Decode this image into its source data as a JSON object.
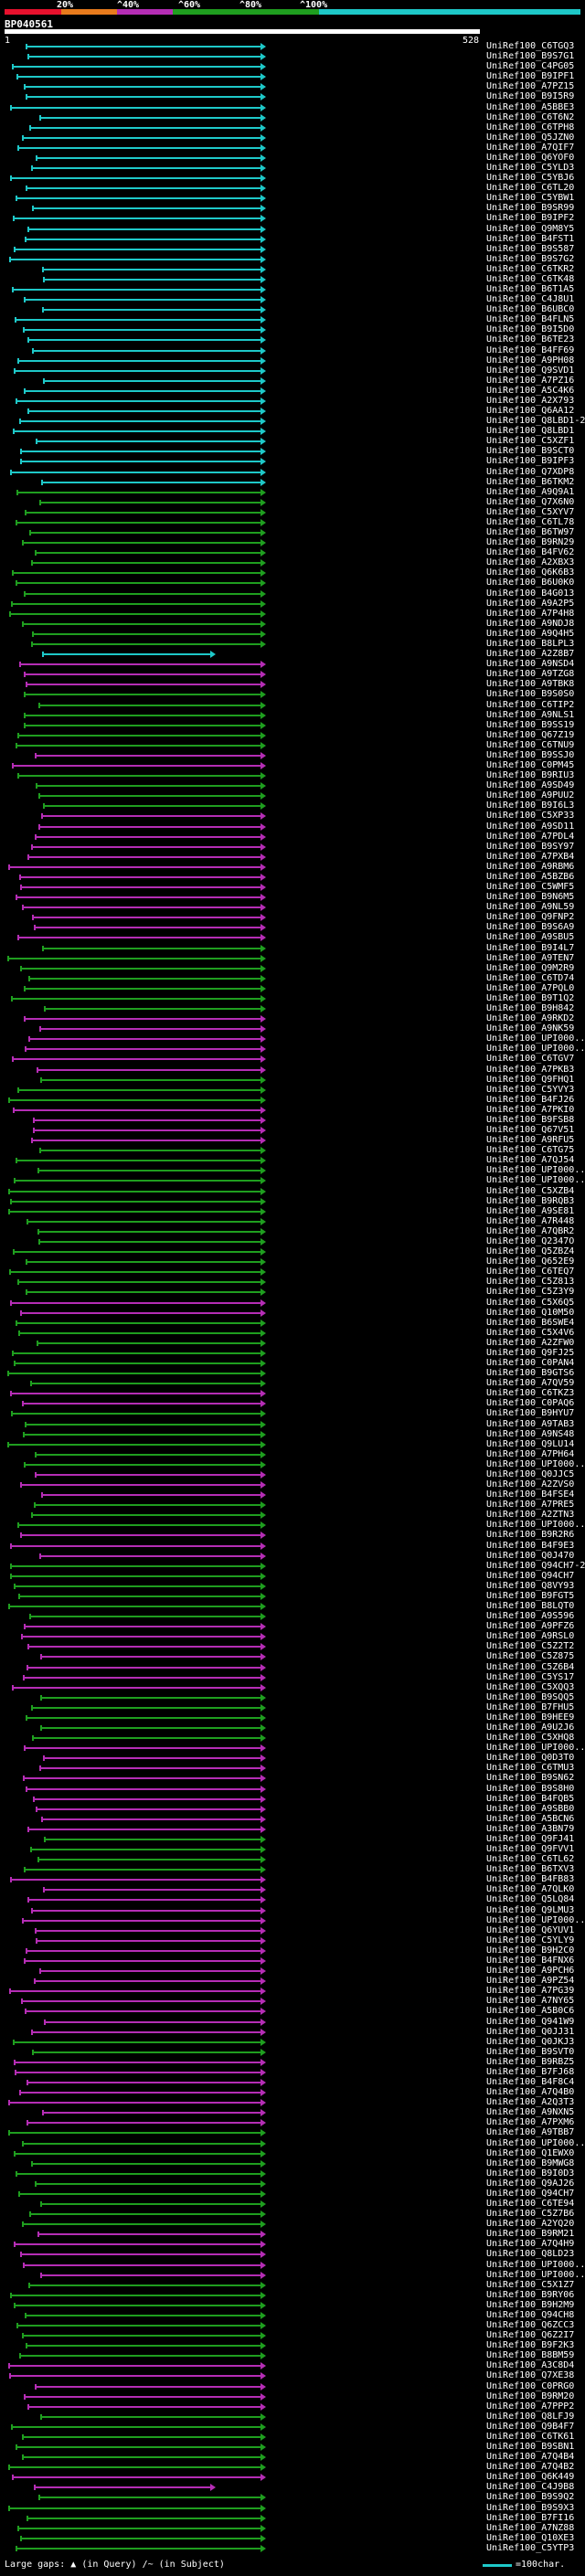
{
  "legend": {
    "colors": [
      "#e8112d",
      "#e87b1d",
      "#b52db5",
      "#1f9e1f",
      "#1ec8c8"
    ],
    "labels": [
      "20%",
      "^40%",
      "^60%",
      "^80%",
      "^100%"
    ]
  },
  "query": {
    "id": "BP040561",
    "start": "1",
    "end": "528"
  },
  "footer": {
    "gaps_label": "Large gaps:",
    "in_query": "(in Query)",
    "in_subject": "/~ (in Subject)",
    "scale_label": "=100char."
  },
  "hits": [
    {
      "label": "UniRef100_C6TGQ3",
      "color": "cyan"
    },
    {
      "label": "UniRef100_B9S7G1",
      "color": "cyan"
    },
    {
      "label": "UniRef100_C4PG05",
      "color": "cyan"
    },
    {
      "label": "UniRef100_B9IPF1",
      "color": "cyan"
    },
    {
      "label": "UniRef100_A7PZ15",
      "color": "cyan"
    },
    {
      "label": "UniRef100_B9I5R9",
      "color": "cyan"
    },
    {
      "label": "UniRef100_A5BBE3",
      "color": "cyan"
    },
    {
      "label": "UniRef100_C6T6N2",
      "color": "cyan"
    },
    {
      "label": "UniRef100_C6TPH8",
      "color": "cyan"
    },
    {
      "label": "UniRef100_Q5JZN0",
      "color": "cyan"
    },
    {
      "label": "UniRef100_A7QIF7",
      "color": "cyan"
    },
    {
      "label": "UniRef100_Q6YOF0",
      "color": "cyan"
    },
    {
      "label": "UniRef100_C5YLD3",
      "color": "cyan"
    },
    {
      "label": "UniRef100_C5YBJ6",
      "color": "cyan"
    },
    {
      "label": "UniRef100_C6TL20",
      "color": "cyan"
    },
    {
      "label": "UniRef100_C5YBW1",
      "color": "cyan"
    },
    {
      "label": "UniRef100_B9SR99",
      "color": "cyan"
    },
    {
      "label": "UniRef100_B9IPF2",
      "color": "cyan"
    },
    {
      "label": "UniRef100_Q9M8Y5",
      "color": "cyan"
    },
    {
      "label": "UniRef100_B4FST1",
      "color": "cyan"
    },
    {
      "label": "UniRef100_B9S587",
      "color": "cyan"
    },
    {
      "label": "UniRef100_B9S7G2",
      "color": "cyan"
    },
    {
      "label": "UniRef100_C6TKR2",
      "color": "cyan"
    },
    {
      "label": "UniRef100_C6TK48",
      "color": "cyan"
    },
    {
      "label": "UniRef100_B6T1A5",
      "color": "cyan"
    },
    {
      "label": "UniRef100_C4J8U1",
      "color": "cyan"
    },
    {
      "label": "UniRef100_B6UBC0",
      "color": "cyan"
    },
    {
      "label": "UniRef100_B4FLN5",
      "color": "cyan"
    },
    {
      "label": "UniRef100_B9I5D0",
      "color": "cyan"
    },
    {
      "label": "UniRef100_B6TE23",
      "color": "cyan"
    },
    {
      "label": "UniRef100_B4FF69",
      "color": "cyan"
    },
    {
      "label": "UniRef100_A9PH08",
      "color": "cyan"
    },
    {
      "label": "UniRef100_Q9SVD1",
      "color": "cyan"
    },
    {
      "label": "UniRef100_A7PZ16",
      "color": "cyan"
    },
    {
      "label": "UniRef100_A5C4K6",
      "color": "cyan"
    },
    {
      "label": "UniRef100_A2X793",
      "color": "cyan"
    },
    {
      "label": "UniRef100_Q6AA12",
      "color": "cyan"
    },
    {
      "label": "UniRef100_Q8LBD1-2",
      "color": "cyan"
    },
    {
      "label": "UniRef100_Q8LBD1",
      "color": "cyan"
    },
    {
      "label": "UniRef100_C5XZF1",
      "color": "cyan"
    },
    {
      "label": "UniRef100_B9SCT0",
      "color": "cyan"
    },
    {
      "label": "UniRef100_B9IPF3",
      "color": "cyan"
    },
    {
      "label": "UniRef100_Q7XDP8",
      "color": "cyan"
    },
    {
      "label": "UniRef100_B6TKM2",
      "color": "cyan"
    },
    {
      "label": "UniRef100_A9Q9A1",
      "color": "green"
    },
    {
      "label": "UniRef100_Q7X6N0",
      "color": "green"
    },
    {
      "label": "UniRef100_C5XYV7",
      "color": "green"
    },
    {
      "label": "UniRef100_C6TL78",
      "color": "green"
    },
    {
      "label": "UniRef100_B6TW97",
      "color": "green"
    },
    {
      "label": "UniRef100_B9RN29",
      "color": "green"
    },
    {
      "label": "UniRef100_B4FV62",
      "color": "green"
    },
    {
      "label": "UniRef100_A2XBX3",
      "color": "green"
    },
    {
      "label": "UniRef100_Q6K6B3",
      "color": "green"
    },
    {
      "label": "UniRef100_B6U0K0",
      "color": "green"
    },
    {
      "label": "UniRef100_B4G013",
      "color": "green"
    },
    {
      "label": "UniRef100_A9A2P5",
      "color": "green"
    },
    {
      "label": "UniRef100_A7P4H8",
      "color": "green"
    },
    {
      "label": "UniRef100_A9NDJ8",
      "color": "green"
    },
    {
      "label": "UniRef100_A9Q4H5",
      "color": "green"
    },
    {
      "label": "UniRef100_B8LPL3",
      "color": "green"
    },
    {
      "label": "UniRef100_A2Z8B7",
      "color": "cyan",
      "short": true
    },
    {
      "label": "UniRef100_A9NSD4",
      "color": "magenta"
    },
    {
      "label": "UniRef100_A9TZG8",
      "color": "magenta"
    },
    {
      "label": "UniRef100_A9TBK8",
      "color": "magenta"
    },
    {
      "label": "UniRef100_B9S0S0",
      "color": "green"
    },
    {
      "label": "UniRef100_C6TIP2",
      "color": "green"
    },
    {
      "label": "UniRef100_A9NLS1",
      "color": "green"
    },
    {
      "label": "UniRef100_B9SS19",
      "color": "green"
    },
    {
      "label": "UniRef100_Q67Z19",
      "color": "green"
    },
    {
      "label": "UniRef100_C6TNU9",
      "color": "green"
    },
    {
      "label": "UniRef100_B9SSJ0",
      "color": "magenta"
    },
    {
      "label": "UniRef100_C0PM45",
      "color": "magenta"
    },
    {
      "label": "UniRef100_B9RIU3",
      "color": "green"
    },
    {
      "label": "UniRef100_A9SD49",
      "color": "green"
    },
    {
      "label": "UniRef100_A9PUU2",
      "color": "green"
    },
    {
      "label": "UniRef100_B9I6L3",
      "color": "green"
    },
    {
      "label": "UniRef100_C5XP33",
      "color": "magenta"
    },
    {
      "label": "UniRef100_A9SD11",
      "color": "magenta"
    },
    {
      "label": "UniRef100_A7PDL4",
      "color": "magenta"
    },
    {
      "label": "UniRef100_B9SY97",
      "color": "magenta"
    },
    {
      "label": "UniRef100_A7PXB4",
      "color": "magenta"
    },
    {
      "label": "UniRef100_A9RBM6",
      "color": "magenta"
    },
    {
      "label": "UniRef100_A5BZB6",
      "color": "magenta"
    },
    {
      "label": "UniRef100_C5WMF5",
      "color": "magenta"
    },
    {
      "label": "UniRef100_B9N6M5",
      "color": "magenta"
    },
    {
      "label": "UniRef100_A9NL59",
      "color": "magenta"
    },
    {
      "label": "UniRef100_Q9FNP2",
      "color": "magenta"
    },
    {
      "label": "UniRef100_B9S6A9",
      "color": "magenta"
    },
    {
      "label": "UniRef100_A9SBU5",
      "color": "magenta"
    },
    {
      "label": "UniRef100_B9I4L7",
      "color": "green"
    },
    {
      "label": "UniRef100_A9TEN7",
      "color": "green"
    },
    {
      "label": "UniRef100_Q9M2R9",
      "color": "green"
    },
    {
      "label": "UniRef100_C6TD74",
      "color": "green"
    },
    {
      "label": "UniRef100_A7PQL0",
      "color": "green"
    },
    {
      "label": "UniRef100_B9T1Q2",
      "color": "green"
    },
    {
      "label": "UniRef100_B9H842",
      "color": "green"
    },
    {
      "label": "UniRef100_A9RKD2",
      "color": "magenta"
    },
    {
      "label": "UniRef100_A9NK59",
      "color": "magenta"
    },
    {
      "label": "UniRef100_UPI000...",
      "color": "magenta"
    },
    {
      "label": "UniRef100_UPI000...",
      "color": "magenta"
    },
    {
      "label": "UniRef100_C6TGV7",
      "color": "magenta"
    },
    {
      "label": "UniRef100_A7PKB3",
      "color": "magenta"
    },
    {
      "label": "UniRef100_Q9FHQ1",
      "color": "green"
    },
    {
      "label": "UniRef100_C5YVY3",
      "color": "green"
    },
    {
      "label": "UniRef100_B4FJ26",
      "color": "green"
    },
    {
      "label": "UniRef100_A7PKI0",
      "color": "magenta"
    },
    {
      "label": "UniRef100_B9FSB8",
      "color": "magenta"
    },
    {
      "label": "UniRef100_Q67V51",
      "color": "magenta"
    },
    {
      "label": "UniRef100_A9RFU5",
      "color": "magenta"
    },
    {
      "label": "UniRef100_C6TG75",
      "color": "green"
    },
    {
      "label": "UniRef100_A7QJ54",
      "color": "green"
    },
    {
      "label": "UniRef100_UPI000...",
      "color": "green"
    },
    {
      "label": "UniRef100_UPI000...",
      "color": "green"
    },
    {
      "label": "UniRef100_C5XZB4",
      "color": "green"
    },
    {
      "label": "UniRef100_B9RQB3",
      "color": "green"
    },
    {
      "label": "UniRef100_A9SE81",
      "color": "green"
    },
    {
      "label": "UniRef100_A7R448",
      "color": "green"
    },
    {
      "label": "UniRef100_A7QBR2",
      "color": "green"
    },
    {
      "label": "UniRef100_Q2347O",
      "color": "green"
    },
    {
      "label": "UniRef100_Q5ZBZ4",
      "color": "green"
    },
    {
      "label": "UniRef100_Q652E9",
      "color": "green"
    },
    {
      "label": "UniRef100_C6TEQ7",
      "color": "green"
    },
    {
      "label": "UniRef100_C5Z813",
      "color": "green"
    },
    {
      "label": "UniRef100_C5Z3Y9",
      "color": "green"
    },
    {
      "label": "UniRef100_C5X6Q5",
      "color": "magenta"
    },
    {
      "label": "UniRef100_Q10M50",
      "color": "magenta"
    },
    {
      "label": "UniRef100_B6SWE4",
      "color": "green"
    },
    {
      "label": "UniRef100_C5X4V6",
      "color": "green"
    },
    {
      "label": "UniRef100_A2ZFW0",
      "color": "green"
    },
    {
      "label": "UniRef100_Q9FJ25",
      "color": "green"
    },
    {
      "label": "UniRef100_C0PAN4",
      "color": "green"
    },
    {
      "label": "UniRef100_B9GTS6",
      "color": "green"
    },
    {
      "label": "UniRef100_A7QV59",
      "color": "green"
    },
    {
      "label": "UniRef100_C6TKZ3",
      "color": "magenta"
    },
    {
      "label": "UniRef100_C0PAQ6",
      "color": "magenta"
    },
    {
      "label": "UniRef100_B9HYU7",
      "color": "green"
    },
    {
      "label": "UniRef100_A9TAB3",
      "color": "green"
    },
    {
      "label": "UniRef100_A9NS48",
      "color": "green"
    },
    {
      "label": "UniRef100_Q9LU14",
      "color": "green"
    },
    {
      "label": "UniRef100_A7PH64",
      "color": "green"
    },
    {
      "label": "UniRef100_UPI000...",
      "color": "green"
    },
    {
      "label": "UniRef100_Q0JJC5",
      "color": "magenta"
    },
    {
      "label": "UniRef100_A2ZVS0",
      "color": "magenta"
    },
    {
      "label": "UniRef100_B4FSE4",
      "color": "magenta"
    },
    {
      "label": "UniRef100_A7PRE5",
      "color": "green"
    },
    {
      "label": "UniRef100_A2ZTN3",
      "color": "green"
    },
    {
      "label": "UniRef100_UPI000...",
      "color": "green"
    },
    {
      "label": "UniRef100_B9R2R6",
      "color": "magenta"
    },
    {
      "label": "UniRef100_B4F9E3",
      "color": "magenta"
    },
    {
      "label": "UniRef100_Q0J470",
      "color": "magenta"
    },
    {
      "label": "UniRef100_Q94CH7-2",
      "color": "green"
    },
    {
      "label": "UniRef100_Q94CH7",
      "color": "green"
    },
    {
      "label": "UniRef100_Q8VY93",
      "color": "green"
    },
    {
      "label": "UniRef100_B9FGT5",
      "color": "green"
    },
    {
      "label": "UniRef100_B8LQT0",
      "color": "green"
    },
    {
      "label": "UniRef100_A9S596",
      "color": "green"
    },
    {
      "label": "UniRef100_A9PFZ6",
      "color": "magenta"
    },
    {
      "label": "UniRef100_A9RSL0",
      "color": "magenta"
    },
    {
      "label": "UniRef100_C5Z2T2",
      "color": "magenta"
    },
    {
      "label": "UniRef100_C5Z875",
      "color": "magenta"
    },
    {
      "label": "UniRef100_C5Z6B4",
      "color": "magenta"
    },
    {
      "label": "UniRef100_C5YS17",
      "color": "magenta"
    },
    {
      "label": "UniRef100_C5XQQ3",
      "color": "magenta"
    },
    {
      "label": "UniRef100_B9SQQ5",
      "color": "green"
    },
    {
      "label": "UniRef100_B7FHU5",
      "color": "green"
    },
    {
      "label": "UniRef100_B9HEE9",
      "color": "green"
    },
    {
      "label": "UniRef100_A9U2J6",
      "color": "green"
    },
    {
      "label": "UniRef100_C5XHQ8",
      "color": "green"
    },
    {
      "label": "UniRef100_UPI000...",
      "color": "magenta"
    },
    {
      "label": "UniRef100_Q0D3T0",
      "color": "magenta"
    },
    {
      "label": "UniRef100_C6TMU3",
      "color": "magenta"
    },
    {
      "label": "UniRef100_B9SN62",
      "color": "magenta"
    },
    {
      "label": "UniRef100_B9S8H0",
      "color": "magenta"
    },
    {
      "label": "UniRef100_B4FQB5",
      "color": "magenta"
    },
    {
      "label": "UniRef100_A9SBB0",
      "color": "magenta"
    },
    {
      "label": "UniRef100_A5BCN6",
      "color": "magenta"
    },
    {
      "label": "UniRef100_A3BN79",
      "color": "magenta"
    },
    {
      "label": "UniRef100_Q9FJ41",
      "color": "green"
    },
    {
      "label": "UniRef100_Q9FVV1",
      "color": "green"
    },
    {
      "label": "UniRef100_C6TL62",
      "color": "green"
    },
    {
      "label": "UniRef100_B6TXV3",
      "color": "green"
    },
    {
      "label": "UniRef100_B4FB83",
      "color": "magenta"
    },
    {
      "label": "UniRef100_A7QLK0",
      "color": "magenta"
    },
    {
      "label": "UniRef100_Q5LQ84",
      "color": "magenta"
    },
    {
      "label": "UniRef100_Q9LMU3",
      "color": "magenta"
    },
    {
      "label": "UniRef100_UPI000...",
      "color": "magenta"
    },
    {
      "label": "UniRef100_Q6YUV1",
      "color": "magenta"
    },
    {
      "label": "UniRef100_C5YLY9",
      "color": "magenta"
    },
    {
      "label": "UniRef100_B9H2C0",
      "color": "magenta"
    },
    {
      "label": "UniRef100_B4FNX6",
      "color": "magenta"
    },
    {
      "label": "UniRef100_A9PCH6",
      "color": "magenta"
    },
    {
      "label": "UniRef100_A9PZ54",
      "color": "magenta"
    },
    {
      "label": "UniRef100_A7PG39",
      "color": "magenta"
    },
    {
      "label": "UniRef100_A7NY65",
      "color": "magenta"
    },
    {
      "label": "UniRef100_A5B0C6",
      "color": "magenta"
    },
    {
      "label": "UniRef100_Q941W9",
      "color": "magenta"
    },
    {
      "label": "UniRef100_Q0JJ31",
      "color": "magenta"
    },
    {
      "label": "UniRef100_Q0JKJ3",
      "color": "green"
    },
    {
      "label": "UniRef100_B9SVT0",
      "color": "green"
    },
    {
      "label": "UniRef100_B9RBZ5",
      "color": "magenta"
    },
    {
      "label": "UniRef100_B7FJ68",
      "color": "magenta"
    },
    {
      "label": "UniRef100_B4F8C4",
      "color": "magenta"
    },
    {
      "label": "UniRef100_A7Q4B0",
      "color": "magenta"
    },
    {
      "label": "UniRef100_A2Q3T3",
      "color": "magenta"
    },
    {
      "label": "UniRef100_A9NXN5",
      "color": "magenta"
    },
    {
      "label": "UniRef100_A7PXM6",
      "color": "magenta"
    },
    {
      "label": "UniRef100_A9TBB7",
      "color": "green"
    },
    {
      "label": "UniRef100_UPI000...",
      "color": "green"
    },
    {
      "label": "UniRef100_Q1EWX0",
      "color": "green"
    },
    {
      "label": "UniRef100_B9MWG8",
      "color": "green"
    },
    {
      "label": "UniRef100_B9I0D3",
      "color": "green"
    },
    {
      "label": "UniRef100_Q9AJ26",
      "color": "green"
    },
    {
      "label": "UniRef100_Q94CH7",
      "color": "green"
    },
    {
      "label": "UniRef100_C6TE94",
      "color": "green"
    },
    {
      "label": "UniRef100_C5Z7B6",
      "color": "green"
    },
    {
      "label": "UniRef100_A2YQ20",
      "color": "green"
    },
    {
      "label": "UniRef100_B9RM21",
      "color": "magenta"
    },
    {
      "label": "UniRef100_A7Q4H9",
      "color": "magenta"
    },
    {
      "label": "UniRef100_Q8LD23",
      "color": "magenta"
    },
    {
      "label": "UniRef100_UPI000...",
      "color": "magenta"
    },
    {
      "label": "UniRef100_UPI000...",
      "color": "magenta"
    },
    {
      "label": "UniRef100_C5X1Z7",
      "color": "green"
    },
    {
      "label": "UniRef100_B9RY06",
      "color": "green"
    },
    {
      "label": "UniRef100_B9H2M9",
      "color": "green"
    },
    {
      "label": "UniRef100_Q94CH8",
      "color": "green"
    },
    {
      "label": "UniRef100_Q6ZCC3",
      "color": "green"
    },
    {
      "label": "UniRef100_Q6Z2I7",
      "color": "green"
    },
    {
      "label": "UniRef100_B9F2K3",
      "color": "green"
    },
    {
      "label": "UniRef100_B8BM59",
      "color": "green"
    },
    {
      "label": "UniRef100_A3C8D4",
      "color": "magenta"
    },
    {
      "label": "UniRef100_Q7XE38",
      "color": "magenta"
    },
    {
      "label": "UniRef100_C0PRG0",
      "color": "magenta"
    },
    {
      "label": "UniRef100_B9RM20",
      "color": "magenta"
    },
    {
      "label": "UniRef100_A7PPP2",
      "color": "magenta"
    },
    {
      "label": "UniRef100_Q8LFJ9",
      "color": "green"
    },
    {
      "label": "UniRef100_Q9B4F7",
      "color": "green"
    },
    {
      "label": "UniRef100_C6TK61",
      "color": "green"
    },
    {
      "label": "UniRef100_B9SBN1",
      "color": "green"
    },
    {
      "label": "UniRef100_A7Q4B4",
      "color": "green"
    },
    {
      "label": "UniRef100_A7Q4B2",
      "color": "green"
    },
    {
      "label": "UniRef100_Q6K449",
      "color": "magenta"
    },
    {
      "label": "UniRef100_C4J9B8",
      "color": "magenta",
      "short": true
    },
    {
      "label": "UniRef100_B9S9Q2",
      "color": "green"
    },
    {
      "label": "UniRef100_B9S9X3",
      "color": "green"
    },
    {
      "label": "UniRef100_B7FI16",
      "color": "green"
    },
    {
      "label": "UniRef100_A7NZ88",
      "color": "green"
    },
    {
      "label": "UniRef100_Q10XE3",
      "color": "green"
    },
    {
      "label": "UniRef100_C5YTP3",
      "color": "green"
    }
  ]
}
